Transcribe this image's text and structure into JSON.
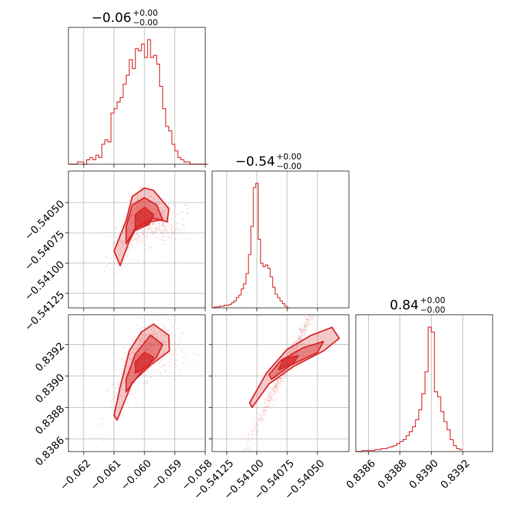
{
  "chart_data": {
    "type": "corner",
    "color": "#d62728",
    "grid": true,
    "parameters": [
      {
        "index": 0,
        "range": [
          -0.0625,
          -0.058
        ],
        "ticks": [
          -0.062,
          -0.061,
          -0.06,
          -0.059,
          -0.058
        ],
        "tick_labels": [
          "−0.062",
          "−0.061",
          "−0.060",
          "−0.059",
          "−0.058"
        ],
        "title_main": "−0.06",
        "title_plus": "+0.00",
        "title_minus": "−0.00"
      },
      {
        "index": 1,
        "range": [
          -0.54137,
          -0.54024
        ],
        "ticks": [
          -0.54125,
          -0.541,
          -0.54075,
          -0.5405
        ],
        "tick_labels": [
          "−0.54125",
          "−0.54100",
          "−0.54075",
          "−0.54050"
        ],
        "title_main": "−0.54",
        "title_plus": "+0.00",
        "title_minus": "−0.00"
      },
      {
        "index": 2,
        "range": [
          0.83852,
          0.83939
        ],
        "ticks": [
          0.8386,
          0.8388,
          0.839,
          0.8392
        ],
        "tick_labels": [
          "0.8386",
          "0.8388",
          "0.8390",
          "0.8392"
        ],
        "title_main": "0.84",
        "title_plus": "+0.00",
        "title_minus": "−0.00"
      }
    ],
    "histograms": [
      {
        "param": 0,
        "bin_start": -0.0625,
        "bin_width": 0.0001,
        "counts": [
          0,
          0,
          0,
          1,
          1,
          0,
          2,
          3,
          2,
          4,
          3,
          9,
          11,
          10,
          23,
          25,
          28,
          30,
          36,
          40,
          47,
          43,
          52,
          51,
          54,
          48,
          56,
          48,
          49,
          45,
          35,
          25,
          17,
          15,
          9,
          6,
          3,
          2,
          1,
          1,
          0,
          0,
          0,
          0,
          0,
          0
        ]
      },
      {
        "param": 1,
        "bin_start": -0.54137,
        "bin_width": 2e-05,
        "counts": [
          0,
          1,
          1,
          2,
          2,
          3,
          3,
          4,
          6,
          8,
          12,
          15,
          22,
          28,
          40,
          62,
          95,
          140,
          145,
          80,
          52,
          48,
          50,
          46,
          36,
          24,
          16,
          12,
          8,
          5,
          2,
          0
        ]
      },
      {
        "param": 2,
        "bin_start": 0.83852,
        "bin_width": 2e-05,
        "counts": [
          0,
          0,
          1,
          1,
          1,
          1,
          2,
          2,
          3,
          3,
          4,
          5,
          6,
          8,
          10,
          12,
          16,
          20,
          25,
          32,
          42,
          58,
          80,
          125,
          120,
          60,
          55,
          40,
          30,
          22,
          12,
          6,
          3,
          2
        ]
      }
    ],
    "panels_2d": [
      {
        "x_param": 0,
        "y_param": 1
      },
      {
        "x_param": 0,
        "y_param": 2
      },
      {
        "x_param": 1,
        "y_param": 2
      }
    ]
  }
}
